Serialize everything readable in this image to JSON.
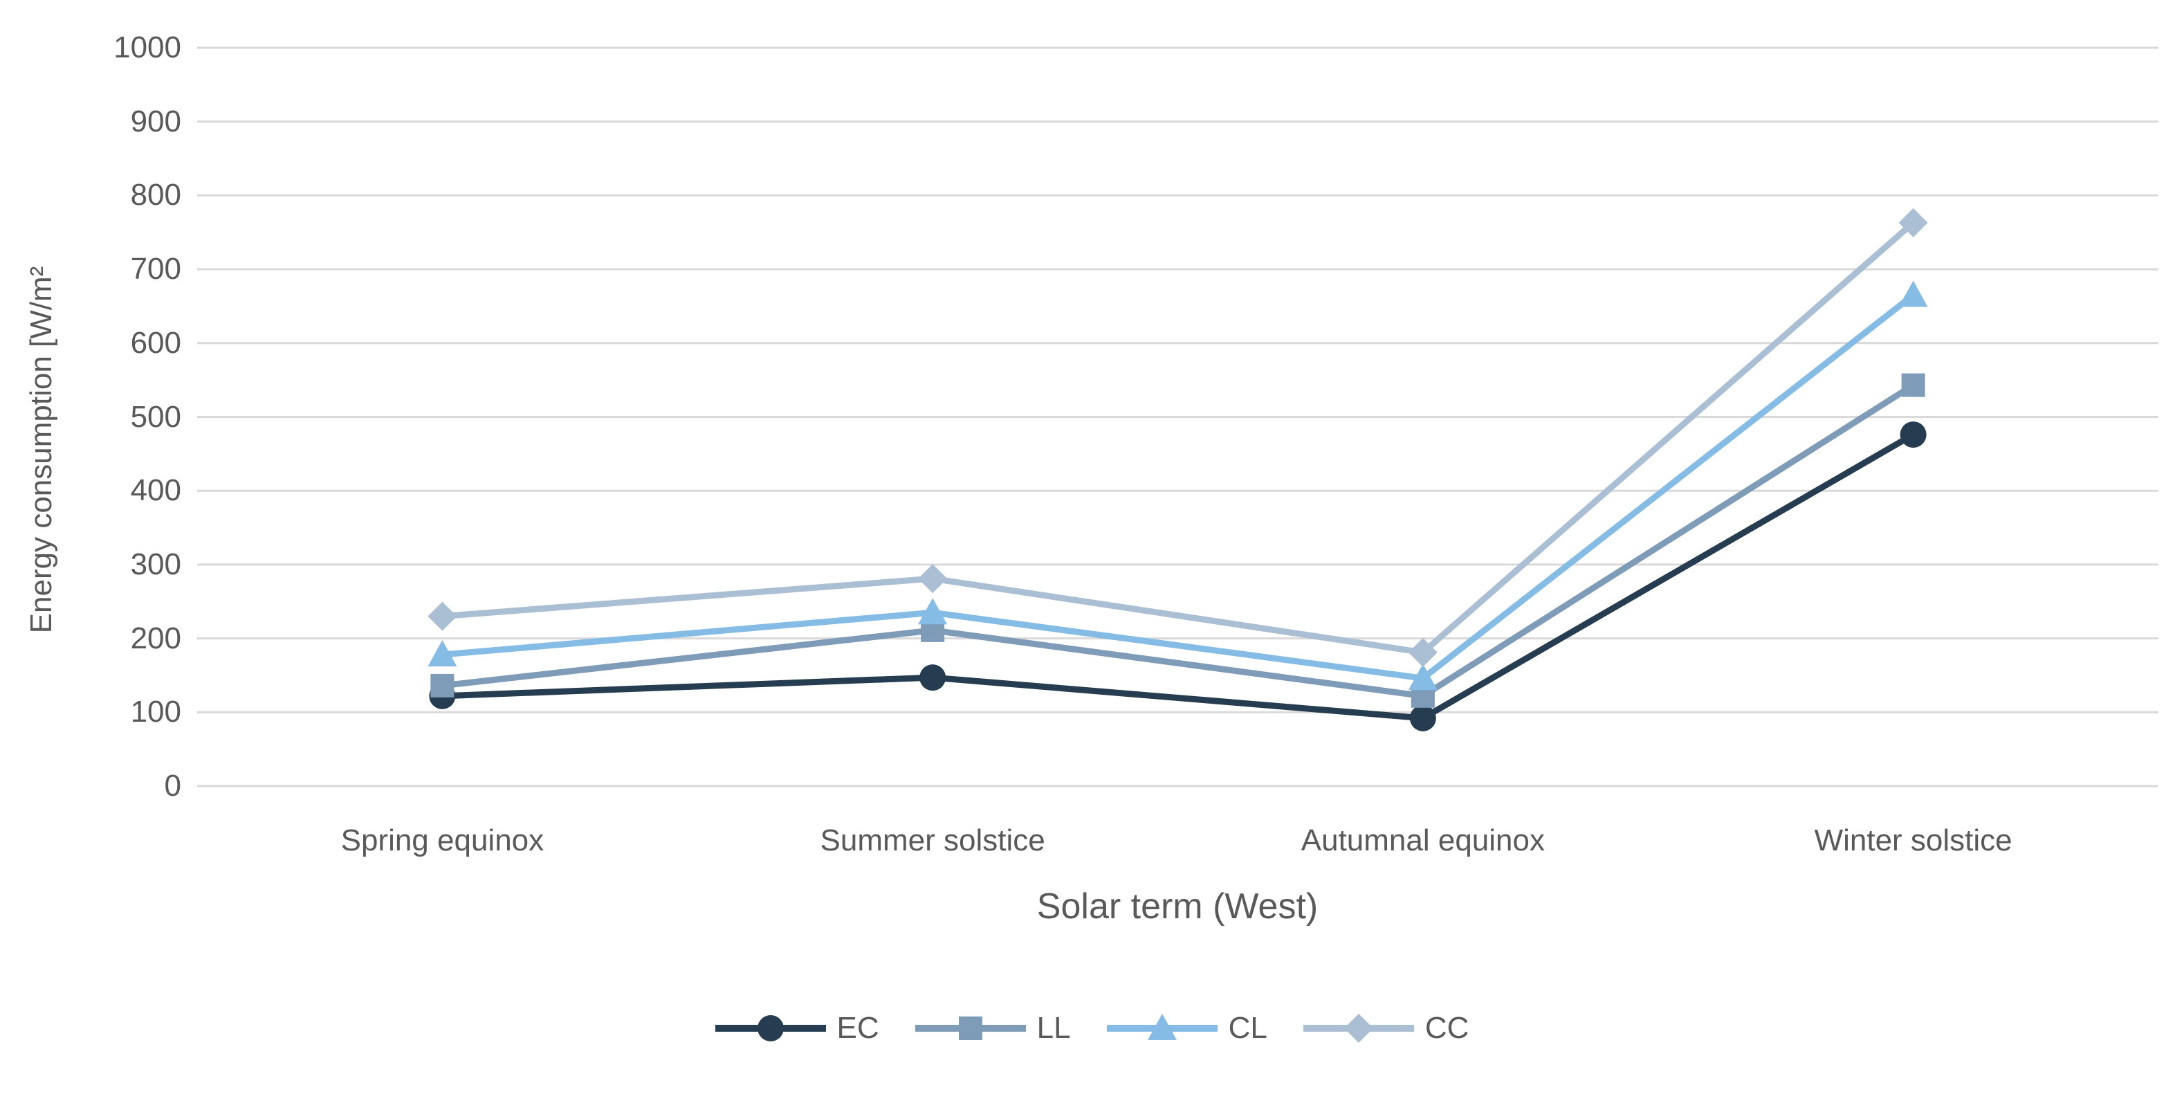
{
  "chart_data": {
    "type": "line",
    "title": "",
    "xlabel": "Solar term (West)",
    "ylabel": "Energy consumption [W/m²",
    "categories": [
      "Spring equinox",
      "Summer solstice",
      "Autumnal equinox",
      "Winter solstice"
    ],
    "series": [
      {
        "name": "EC",
        "marker": "circle",
        "color": "#263C50",
        "values": [
          122,
          147,
          92,
          476
        ]
      },
      {
        "name": "LL",
        "marker": "square",
        "color": "#7E9BB8",
        "values": [
          136,
          211,
          122,
          543
        ]
      },
      {
        "name": "CL",
        "marker": "triangle",
        "color": "#84BCE6",
        "values": [
          178,
          235,
          146,
          665
        ]
      },
      {
        "name": "CC",
        "marker": "diamond",
        "color": "#AABFD4",
        "values": [
          230,
          281,
          181,
          763
        ]
      }
    ],
    "ylim": [
      0,
      1000
    ],
    "yticks": [
      0,
      100,
      200,
      300,
      400,
      500,
      600,
      700,
      800,
      900,
      1000
    ],
    "grid": "horizontal",
    "gridline_color": "#D9D9D9",
    "text_color": "#595959",
    "legend_position": "bottom"
  }
}
